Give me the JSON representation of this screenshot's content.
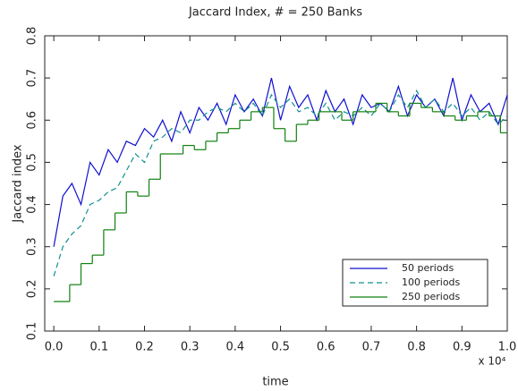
{
  "chart_data": {
    "type": "line",
    "title": "Jaccard Index, # = 250 Banks",
    "xlabel": "time",
    "ylabel": "Jaccard index",
    "x_multiplier": "x 10⁴",
    "xlim": [
      -0.02,
      1.0
    ],
    "xticks": [
      {
        "value": 0,
        "label": "0.0"
      },
      0.1,
      0.2,
      0.3,
      0.4,
      0.5,
      0.6,
      0.7,
      0.8,
      0.9,
      {
        "value": 1,
        "label": "1.0"
      }
    ],
    "ylim": [
      0.1,
      0.8
    ],
    "yticks": [
      0.1,
      0.2,
      0.3,
      0.4,
      0.5,
      0.6,
      0.7,
      0.8
    ],
    "legend": "lower right",
    "series": [
      {
        "name": "50 periods",
        "color": "#1010d0",
        "style": "solid",
        "x": [
          0,
          0.02,
          0.04,
          0.06,
          0.08,
          0.1,
          0.12,
          0.14,
          0.16,
          0.18,
          0.2,
          0.22,
          0.24,
          0.26,
          0.28,
          0.3,
          0.32,
          0.34,
          0.36,
          0.38,
          0.4,
          0.42,
          0.44,
          0.46,
          0.48,
          0.5,
          0.52,
          0.54,
          0.56,
          0.58,
          0.6,
          0.62,
          0.64,
          0.66,
          0.68,
          0.7,
          0.72,
          0.74,
          0.76,
          0.78,
          0.8,
          0.82,
          0.84,
          0.86,
          0.88,
          0.9,
          0.92,
          0.94,
          0.96,
          0.98,
          1.0
        ],
        "values": [
          0.3,
          0.42,
          0.45,
          0.4,
          0.5,
          0.47,
          0.53,
          0.5,
          0.55,
          0.54,
          0.58,
          0.56,
          0.6,
          0.55,
          0.62,
          0.57,
          0.63,
          0.6,
          0.64,
          0.59,
          0.66,
          0.62,
          0.65,
          0.61,
          0.7,
          0.6,
          0.68,
          0.63,
          0.66,
          0.6,
          0.67,
          0.62,
          0.65,
          0.59,
          0.66,
          0.63,
          0.64,
          0.62,
          0.68,
          0.61,
          0.66,
          0.63,
          0.65,
          0.61,
          0.7,
          0.6,
          0.66,
          0.62,
          0.64,
          0.59,
          0.66
        ]
      },
      {
        "name": "100 periods",
        "color": "#109090",
        "style": "dashed",
        "x": [
          0,
          0.02,
          0.04,
          0.06,
          0.08,
          0.1,
          0.12,
          0.14,
          0.16,
          0.18,
          0.2,
          0.22,
          0.24,
          0.26,
          0.28,
          0.3,
          0.32,
          0.34,
          0.36,
          0.38,
          0.4,
          0.42,
          0.44,
          0.46,
          0.48,
          0.5,
          0.52,
          0.54,
          0.56,
          0.58,
          0.6,
          0.62,
          0.64,
          0.66,
          0.68,
          0.7,
          0.72,
          0.74,
          0.76,
          0.78,
          0.8,
          0.82,
          0.84,
          0.86,
          0.88,
          0.9,
          0.92,
          0.94,
          0.96,
          0.98,
          1.0
        ],
        "values": [
          0.23,
          0.3,
          0.33,
          0.35,
          0.4,
          0.41,
          0.43,
          0.44,
          0.48,
          0.52,
          0.5,
          0.55,
          0.56,
          0.58,
          0.57,
          0.6,
          0.6,
          0.62,
          0.63,
          0.62,
          0.64,
          0.62,
          0.64,
          0.61,
          0.66,
          0.63,
          0.65,
          0.62,
          0.63,
          0.61,
          0.64,
          0.6,
          0.62,
          0.61,
          0.63,
          0.61,
          0.64,
          0.62,
          0.66,
          0.63,
          0.67,
          0.63,
          0.65,
          0.62,
          0.64,
          0.61,
          0.63,
          0.6,
          0.62,
          0.59,
          0.61
        ]
      },
      {
        "name": "250 periods",
        "color": "#108010",
        "style": "steps",
        "x": [
          0,
          0.035,
          0.06,
          0.085,
          0.11,
          0.135,
          0.16,
          0.185,
          0.21,
          0.235,
          0.26,
          0.285,
          0.31,
          0.335,
          0.36,
          0.385,
          0.41,
          0.435,
          0.46,
          0.485,
          0.51,
          0.535,
          0.56,
          0.585,
          0.61,
          0.635,
          0.66,
          0.685,
          0.71,
          0.735,
          0.76,
          0.785,
          0.81,
          0.835,
          0.86,
          0.885,
          0.91,
          0.935,
          0.96,
          0.985
        ],
        "values": [
          0.17,
          0.21,
          0.26,
          0.28,
          0.34,
          0.38,
          0.43,
          0.42,
          0.46,
          0.52,
          0.52,
          0.54,
          0.53,
          0.55,
          0.57,
          0.58,
          0.6,
          0.62,
          0.63,
          0.58,
          0.55,
          0.59,
          0.6,
          0.62,
          0.62,
          0.6,
          0.62,
          0.62,
          0.64,
          0.62,
          0.61,
          0.64,
          0.63,
          0.62,
          0.61,
          0.6,
          0.61,
          0.62,
          0.61,
          0.57
        ]
      }
    ]
  }
}
